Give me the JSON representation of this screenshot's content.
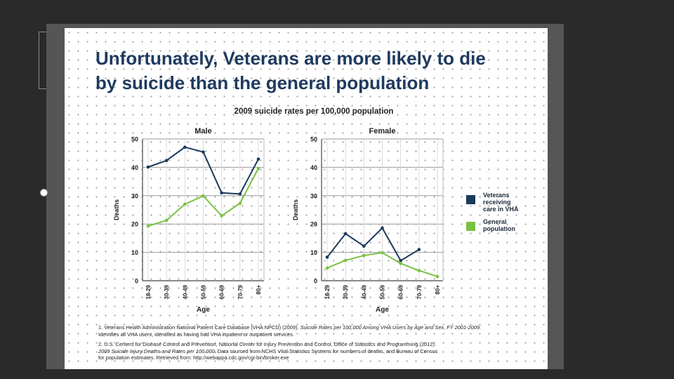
{
  "slide": {
    "title_line1": "Unfortunately, Veterans are more likely to die",
    "title_line2": "by suicide than the general population"
  },
  "chart_data": {
    "type": "line",
    "title": "2009 suicide rates per 100,000 population",
    "xlabel": "Age",
    "ylabel": "Deaths",
    "ylim": [
      0,
      50
    ],
    "yticks": [
      0,
      10,
      20,
      30,
      40,
      50
    ],
    "categories": [
      "18-29",
      "30-39",
      "40-49",
      "50-59",
      "60-69",
      "70-79",
      "80+"
    ],
    "colors": {
      "veterans": "#1b3a5c",
      "general": "#7ac143"
    },
    "legend": [
      "Veterans receiving care in VHA",
      "General population"
    ],
    "panels": [
      {
        "title": "Male",
        "series": [
          {
            "name": "Veterans receiving care in VHA",
            "values": [
              40.1,
              42.4,
              47.1,
              45.4,
              31.0,
              30.6,
              42.9
            ]
          },
          {
            "name": "General population",
            "values": [
              19.3,
              21.3,
              27.0,
              29.9,
              22.9,
              27.3,
              39.6
            ]
          }
        ]
      },
      {
        "title": "Female",
        "series": [
          {
            "name": "Veterans receiving care in VHA",
            "values": [
              8.3,
              16.6,
              12.2,
              18.6,
              7.1,
              11.0,
              null
            ]
          },
          {
            "name": "General population",
            "values": [
              4.5,
              7.2,
              8.9,
              9.9,
              6.1,
              3.6,
              1.5
            ]
          }
        ]
      }
    ]
  },
  "footnotes": {
    "fn1_line1": "1. Veterans Health Administration National Patient Care Database (VHA NPCD) (2009).",
    "fn1_italic": "Suicide Rates per 100,000 Among VHA Users by Age and Sex, FY 2001-2009.",
    "fn1_line2": "Identifies all VHA users, identified as having had VHA inpatient or outpatient services.",
    "fn2_line1": "2. U.S. Centers for Disease Control and Prevention, National Center for Injury Prevention and Control, Office of Statistics and Programming (2012).",
    "fn2_italic": "2009 Suicide Injury Deaths and Rates per 100,000.",
    "fn2_line2": "Data sourced from NCHS Vital Statistics Systems for numbers of deaths, and Bureau of Census",
    "fn2_line3": "for population estimates. Retrieved from: http://webappa.cdc.gov/cgi-bin/broker.exe"
  }
}
